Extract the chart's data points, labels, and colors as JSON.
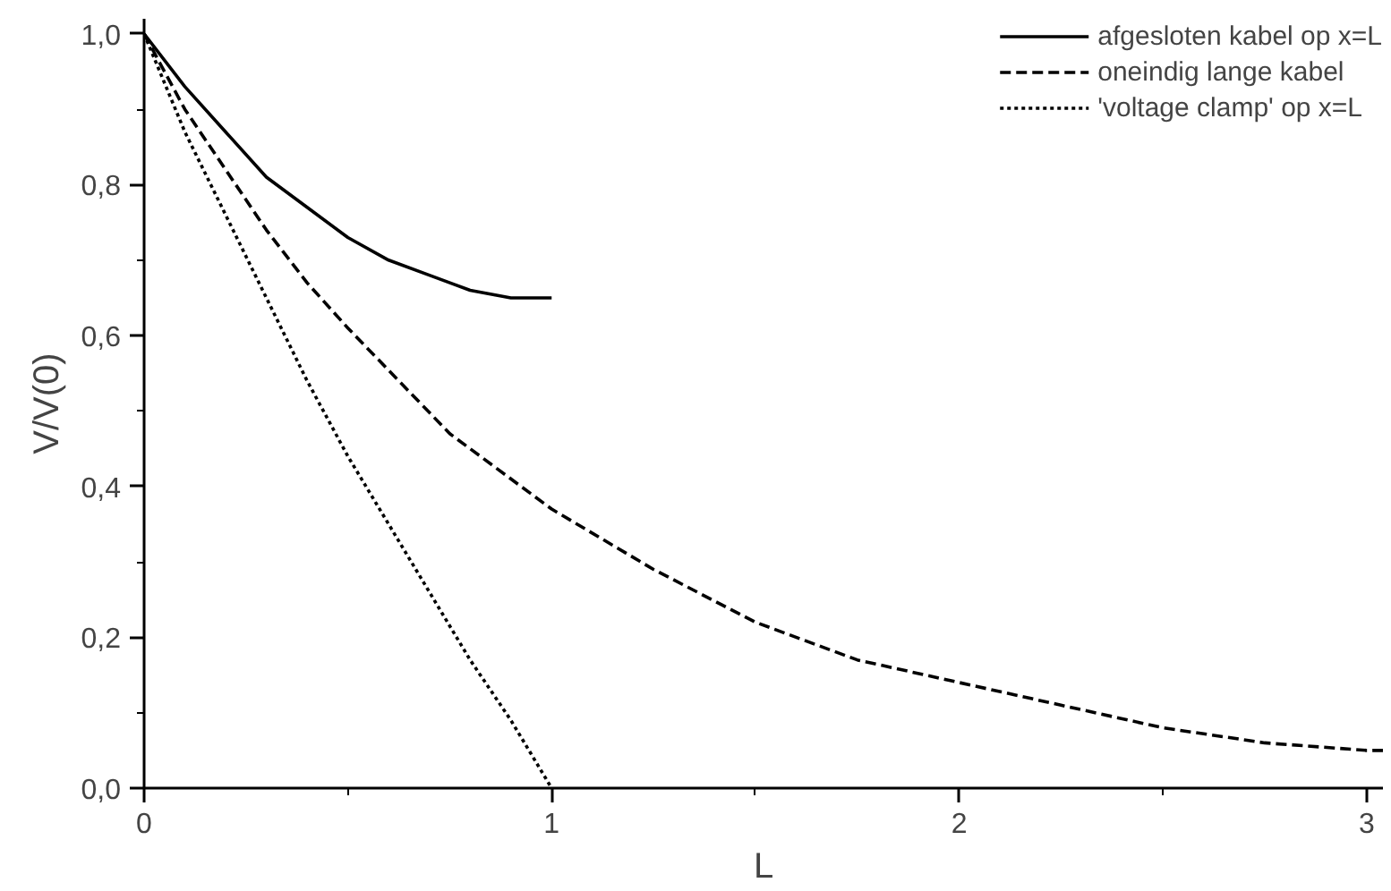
{
  "chart_data": {
    "type": "line",
    "xlabel": "L",
    "ylabel": "V/V(0)",
    "xlim": [
      0,
      3.04
    ],
    "ylim": [
      0,
      1.02
    ],
    "xticks": [
      0,
      1,
      2,
      3
    ],
    "yticks": [
      {
        "value": 0,
        "label": "0,0"
      },
      {
        "value": 0.2,
        "label": "0,2"
      },
      {
        "value": 0.4,
        "label": "0,4"
      },
      {
        "value": 0.6,
        "label": "0,6"
      },
      {
        "value": 0.8,
        "label": "0,8"
      },
      {
        "value": 1.0,
        "label": "1,0"
      }
    ],
    "grid": false,
    "legend": "top right",
    "marker": "none",
    "series": [
      {
        "name": "afgesloten kabel op x=L",
        "color": "#000000",
        "line_style": "solid",
        "x": [
          0,
          0.1,
          0.2,
          0.3,
          0.4,
          0.5,
          0.6,
          0.7,
          0.8,
          0.9,
          1.0
        ],
        "values": [
          1,
          0.93,
          0.87,
          0.81,
          0.77,
          0.73,
          0.7,
          0.68,
          0.66,
          0.65,
          0.65
        ]
      },
      {
        "name": "oneindig lange kabel",
        "color": "#000000",
        "line_style": "dashed",
        "x": [
          0,
          0.1,
          0.2,
          0.3,
          0.4,
          0.5,
          0.75,
          1,
          1.25,
          1.5,
          1.75,
          2,
          2.25,
          2.5,
          2.75,
          3,
          3.04
        ],
        "values": [
          1,
          0.9,
          0.82,
          0.74,
          0.67,
          0.61,
          0.47,
          0.37,
          0.29,
          0.22,
          0.17,
          0.14,
          0.11,
          0.08,
          0.06,
          0.05,
          0.05
        ]
      },
      {
        "name": "'voltage clamp' op x=L",
        "color": "#000000",
        "line_style": "dotted",
        "x": [
          0,
          0.1,
          0.2,
          0.3,
          0.4,
          0.5,
          0.6,
          0.7,
          0.8,
          0.9,
          1.0
        ],
        "values": [
          1,
          0.87,
          0.76,
          0.65,
          0.54,
          0.44,
          0.35,
          0.26,
          0.17,
          0.09,
          0
        ]
      }
    ]
  }
}
